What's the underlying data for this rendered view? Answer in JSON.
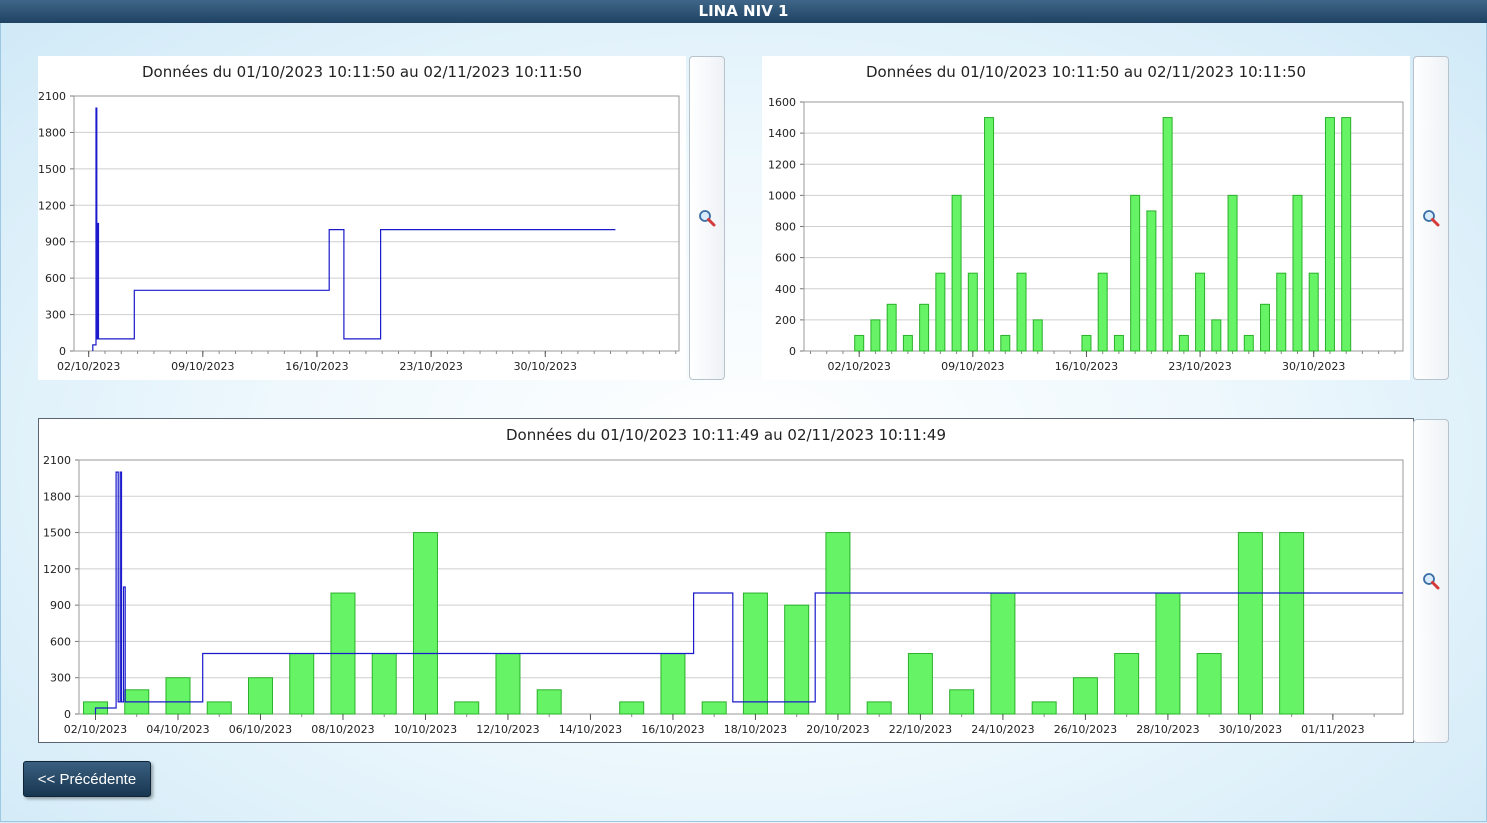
{
  "window": {
    "title": "LINA NIV 1"
  },
  "buttons": {
    "previous_label": "<< Précédente"
  },
  "colors": {
    "line": "#1a1acc",
    "bar_fill": "#66f466",
    "bar_stroke": "#2bb02b",
    "grid": "#cfcfcf"
  },
  "chart_data": [
    {
      "id": "chart1",
      "type": "line",
      "title": "Données du 01/10/2023 10:11:50 au 02/11/2023 10:11:50",
      "ylim": [
        0,
        2100
      ],
      "y_ticks": [
        0,
        300,
        600,
        900,
        1200,
        1500,
        1800,
        2100
      ],
      "x_range_days": [
        0.1,
        37.2
      ],
      "x_ticks": [
        {
          "day": 1,
          "label": "02/10/2023"
        },
        {
          "day": 8,
          "label": "09/10/2023"
        },
        {
          "day": 15,
          "label": "16/10/2023"
        },
        {
          "day": 22,
          "label": "23/10/2023"
        },
        {
          "day": 29,
          "label": "30/10/2023"
        }
      ],
      "series": [
        {
          "points": [
            [
              1.25,
              0
            ],
            [
              1.25,
              50
            ],
            [
              1.45,
              50
            ],
            [
              1.45,
              2000
            ],
            [
              1.5,
              2000
            ],
            [
              1.5,
              100
            ],
            [
              1.55,
              100
            ],
            [
              1.55,
              1050
            ],
            [
              1.6,
              1050
            ],
            [
              1.6,
              100
            ],
            [
              3.8,
              100
            ],
            [
              3.8,
              500
            ],
            [
              15.75,
              500
            ],
            [
              15.75,
              1000
            ],
            [
              16.65,
              1000
            ],
            [
              16.65,
              100
            ],
            [
              18.9,
              100
            ],
            [
              18.9,
              1000
            ],
            [
              33.3,
              1000
            ]
          ]
        }
      ],
      "grid": true
    },
    {
      "id": "chart2",
      "type": "bar",
      "title": "Données du 01/10/2023 10:11:50 au 02/11/2023 10:11:50",
      "ylim": [
        0,
        1600
      ],
      "y_ticks": [
        0,
        200,
        400,
        600,
        800,
        1000,
        1200,
        1400,
        1600
      ],
      "x_range_days": [
        -2.4,
        34.5
      ],
      "x_ticks": [
        {
          "day": 1,
          "label": "02/10/2023"
        },
        {
          "day": 8,
          "label": "09/10/2023"
        },
        {
          "day": 15,
          "label": "16/10/2023"
        },
        {
          "day": 22,
          "label": "23/10/2023"
        },
        {
          "day": 29,
          "label": "30/10/2023"
        }
      ],
      "bars": [
        [
          1,
          100
        ],
        [
          2,
          200
        ],
        [
          3,
          300
        ],
        [
          4,
          100
        ],
        [
          5,
          300
        ],
        [
          6,
          500
        ],
        [
          7,
          1000
        ],
        [
          8,
          500
        ],
        [
          9,
          1500
        ],
        [
          10,
          100
        ],
        [
          11,
          500
        ],
        [
          12,
          200
        ],
        [
          15,
          100
        ],
        [
          16,
          500
        ],
        [
          17,
          100
        ],
        [
          18,
          1000
        ],
        [
          19,
          900
        ],
        [
          20,
          1500
        ],
        [
          21,
          100
        ],
        [
          22,
          500
        ],
        [
          23,
          200
        ],
        [
          24,
          1000
        ],
        [
          25,
          100
        ],
        [
          26,
          300
        ],
        [
          27,
          500
        ],
        [
          28,
          1000
        ],
        [
          29,
          500
        ],
        [
          30,
          1500
        ],
        [
          31,
          1500
        ]
      ],
      "grid": true
    },
    {
      "id": "chart3",
      "type": "bar+line",
      "title": "Données du 01/10/2023 10:11:49 au 02/11/2023 10:11:49",
      "ylim": [
        0,
        2100
      ],
      "y_ticks": [
        0,
        300,
        600,
        900,
        1200,
        1500,
        1800,
        2100
      ],
      "x_range_days": [
        0.6,
        32.7
      ],
      "x_ticks": [
        {
          "day": 1,
          "label": "02/10/2023"
        },
        {
          "day": 3,
          "label": "04/10/2023"
        },
        {
          "day": 5,
          "label": "06/10/2023"
        },
        {
          "day": 7,
          "label": "08/10/2023"
        },
        {
          "day": 9,
          "label": "10/10/2023"
        },
        {
          "day": 11,
          "label": "12/10/2023"
        },
        {
          "day": 13,
          "label": "14/10/2023"
        },
        {
          "day": 15,
          "label": "16/10/2023"
        },
        {
          "day": 17,
          "label": "18/10/2023"
        },
        {
          "day": 19,
          "label": "20/10/2023"
        },
        {
          "day": 21,
          "label": "22/10/2023"
        },
        {
          "day": 23,
          "label": "24/10/2023"
        },
        {
          "day": 25,
          "label": "26/10/2023"
        },
        {
          "day": 27,
          "label": "28/10/2023"
        },
        {
          "day": 29,
          "label": "30/10/2023"
        },
        {
          "day": 31,
          "label": "01/11/2023"
        }
      ],
      "bars": [
        [
          1,
          100
        ],
        [
          2,
          200
        ],
        [
          3,
          300
        ],
        [
          4,
          100
        ],
        [
          5,
          300
        ],
        [
          6,
          500
        ],
        [
          7,
          1000
        ],
        [
          8,
          500
        ],
        [
          9,
          1500
        ],
        [
          10,
          100
        ],
        [
          11,
          500
        ],
        [
          12,
          200
        ],
        [
          14,
          100
        ],
        [
          15,
          500
        ],
        [
          16,
          100
        ],
        [
          17,
          1000
        ],
        [
          18,
          900
        ],
        [
          19,
          1500
        ],
        [
          20,
          100
        ],
        [
          21,
          500
        ],
        [
          22,
          200
        ],
        [
          23,
          1000
        ],
        [
          24,
          100
        ],
        [
          25,
          300
        ],
        [
          26,
          500
        ],
        [
          27,
          1000
        ],
        [
          28,
          500
        ],
        [
          29,
          1500
        ],
        [
          30,
          1500
        ]
      ],
      "series": [
        {
          "points": [
            [
              1.0,
              0
            ],
            [
              1.0,
              50
            ],
            [
              1.5,
              50
            ],
            [
              1.5,
              2000
            ],
            [
              1.55,
              2000
            ],
            [
              1.55,
              100
            ],
            [
              1.6,
              100
            ],
            [
              1.6,
              2000
            ],
            [
              1.63,
              2000
            ],
            [
              1.63,
              100
            ],
            [
              1.68,
              100
            ],
            [
              1.68,
              1050
            ],
            [
              1.72,
              1050
            ],
            [
              1.72,
              100
            ],
            [
              3.6,
              100
            ],
            [
              3.6,
              500
            ],
            [
              15.5,
              500
            ],
            [
              15.5,
              1000
            ],
            [
              16.45,
              1000
            ],
            [
              16.45,
              100
            ],
            [
              18.45,
              100
            ],
            [
              18.45,
              1000
            ],
            [
              32.7,
              1000
            ]
          ]
        }
      ],
      "grid": true
    }
  ]
}
